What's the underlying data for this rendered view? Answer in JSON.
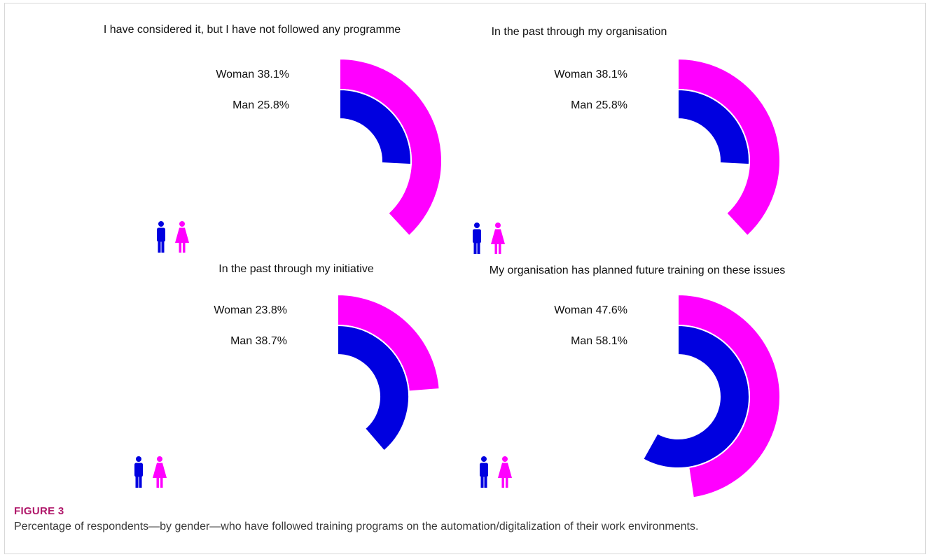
{
  "figure": {
    "label": "FIGURE 3",
    "caption": "Percentage of respondents—by gender—who have followed training programs on the automation/digitalization of their work environments."
  },
  "colors": {
    "man": "#0000e0",
    "woman": "#ff00ff"
  },
  "icons": [
    "man-icon",
    "woman-icon"
  ],
  "chart_data": [
    {
      "type": "radial-bar",
      "title": "I have considered it, but I have not followed any programme",
      "series": [
        {
          "name": "Woman",
          "label": "Woman 38.1%",
          "value": 38.1
        },
        {
          "name": "Man",
          "label": "Man 25.8%",
          "value": 25.8
        }
      ]
    },
    {
      "type": "radial-bar",
      "title": "In the past through my organisation",
      "series": [
        {
          "name": "Woman",
          "label": "Woman 38.1%",
          "value": 38.1
        },
        {
          "name": "Man",
          "label": "Man 25.8%",
          "value": 25.8
        }
      ]
    },
    {
      "type": "radial-bar",
      "title": "In the past through my initiative",
      "series": [
        {
          "name": "Woman",
          "label": "Woman 23.8%",
          "value": 23.8
        },
        {
          "name": "Man",
          "label": "Man 38.7%",
          "value": 38.7
        }
      ]
    },
    {
      "type": "radial-bar",
      "title": "My organisation has planned future training on these issues",
      "series": [
        {
          "name": "Woman",
          "label": "Woman 47.6%",
          "value": 47.6
        },
        {
          "name": "Man",
          "label": "Man 58.1%",
          "value": 58.1
        }
      ]
    }
  ]
}
